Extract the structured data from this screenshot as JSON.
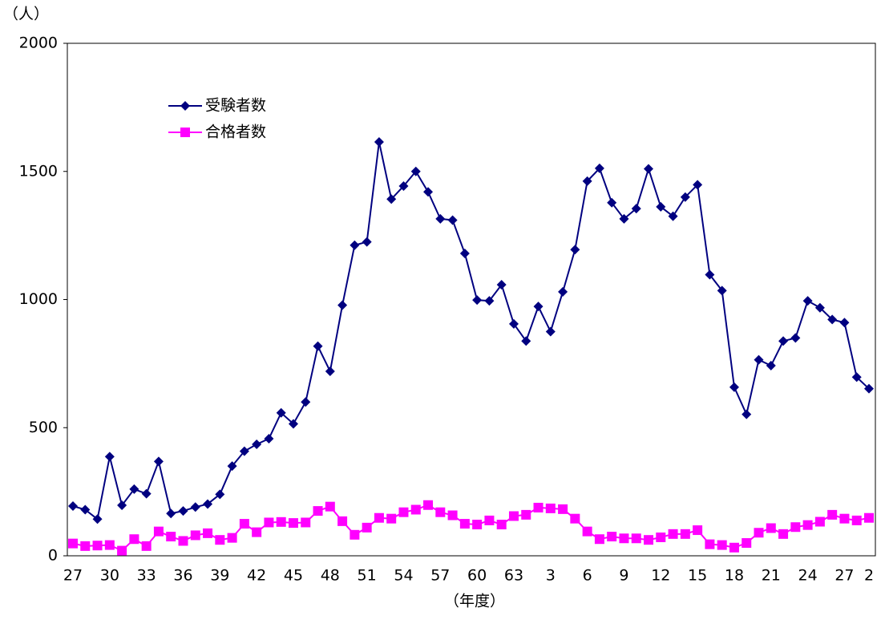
{
  "chart_data": {
    "type": "line",
    "y_unit": "（人）",
    "x_label": "（年度）",
    "categories": [
      "27",
      null,
      null,
      "30",
      null,
      null,
      "33",
      null,
      null,
      "36",
      null,
      null,
      "39",
      null,
      null,
      "42",
      null,
      null,
      "45",
      null,
      null,
      "48",
      null,
      null,
      "51",
      null,
      null,
      "54",
      null,
      null,
      "57",
      null,
      null,
      "60",
      null,
      null,
      "63",
      null,
      null,
      "3",
      null,
      null,
      "6",
      null,
      null,
      "9",
      null,
      null,
      "12",
      null,
      null,
      "15",
      null,
      null,
      "18",
      null,
      null,
      "21",
      null,
      null,
      "24",
      null,
      null,
      "27",
      null,
      "2"
    ],
    "series": [
      {
        "name": "受験者数",
        "color": "#000080",
        "marker": "diamond",
        "values": [
          194,
          180,
          143,
          387,
          197,
          260,
          242,
          368,
          165,
          175,
          190,
          202,
          240,
          350,
          408,
          435,
          457,
          558,
          515,
          600,
          818,
          720,
          978,
          1212,
          1225,
          1615,
          1392,
          1443,
          1500,
          1420,
          1315,
          1310,
          1180,
          998,
          995,
          1058,
          905,
          838,
          973,
          875,
          1030,
          1195,
          1462,
          1512,
          1378,
          1315,
          1355,
          1510,
          1362,
          1325,
          1400,
          1448,
          1097,
          1035,
          658,
          552,
          765,
          742,
          838,
          850,
          995,
          968,
          922,
          910,
          697,
          652
        ]
      },
      {
        "name": "合格者数",
        "color": "#ff00ff",
        "marker": "square",
        "values": [
          48,
          38,
          40,
          42,
          20,
          65,
          38,
          95,
          75,
          58,
          80,
          88,
          62,
          70,
          125,
          92,
          130,
          132,
          128,
          130,
          175,
          192,
          135,
          82,
          110,
          148,
          145,
          170,
          180,
          198,
          170,
          158,
          125,
          122,
          138,
          122,
          155,
          160,
          188,
          185,
          182,
          145,
          95,
          65,
          75,
          68,
          68,
          62,
          72,
          85,
          85,
          100,
          45,
          42,
          32,
          50,
          90,
          108,
          85,
          112,
          120,
          133,
          160,
          145,
          138,
          148
        ]
      }
    ],
    "ylim": [
      0,
      2000
    ],
    "yticks": [
      0,
      500,
      1000,
      1500,
      2000
    ],
    "grid": false,
    "legend": "upper left"
  }
}
